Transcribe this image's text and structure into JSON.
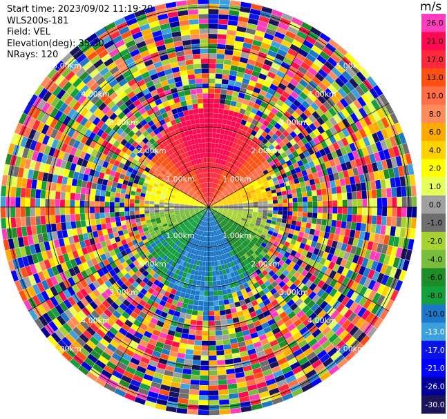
{
  "header": {
    "start_time": "Start time: 2023/09/02 11:19:20",
    "instrument": "WLS200s-181",
    "field": "Field: VEL",
    "elevation": "Elevation(deg): 35.30",
    "nrays": "NRays: 120"
  },
  "chart_data": {
    "type": "heatmap",
    "projection": "polar-ppi",
    "field": "VEL",
    "n_rays": 120,
    "range_rings_km": [
      1,
      2,
      3,
      4,
      5
    ],
    "range_labels": [
      "1.00km",
      "2.00km",
      "3.00km",
      "4.00km",
      "5.00km"
    ],
    "max_range_km": 5.2,
    "colorbar": {
      "unit": "m/s",
      "tick_labels": [
        "26.0",
        "21.0",
        "17.0",
        "13.0",
        "10.0",
        "8.0",
        "6.0",
        "4.0",
        "2.0",
        "1.0",
        "0.0",
        "-1.0",
        "-2.0",
        "-4.0",
        "-6.0",
        "-8.0",
        "-10.0",
        "-13.0",
        "-17.0",
        "-21.0",
        "-26.0",
        "-30.0"
      ],
      "colors": [
        "#ff3cbe",
        "#ff0a50",
        "#ff283c",
        "#ff5014",
        "#ff6e46",
        "#ff8c5a",
        "#ffaa00",
        "#ffd200",
        "#ffff00",
        "#e6ff5a",
        "#a0a0a0",
        "#6e6e6e",
        "#a8d232",
        "#78be3c",
        "#1e8c28",
        "#14a03c",
        "#1e78c8",
        "#3ca0dc",
        "#0a14e6",
        "#0000ff",
        "#000096",
        "#1a145a"
      ]
    }
  }
}
